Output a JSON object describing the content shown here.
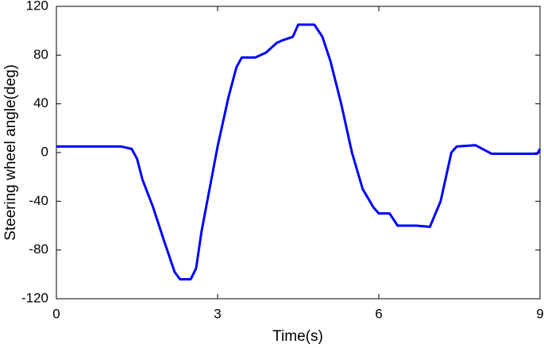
{
  "chart_data": {
    "type": "line",
    "x_label": "Time(s)",
    "y_label": "Steering wheel angle(deg)",
    "xlim": [
      0,
      9
    ],
    "xticks": [
      0,
      3,
      6,
      9
    ],
    "ylim": [
      -120,
      120
    ],
    "yticks": [
      -120,
      -80,
      -40,
      0,
      40,
      80,
      120
    ],
    "series": [
      {
        "name": "Steering wheel angle",
        "color": "#0000ff",
        "x": [
          0,
          0.5,
          1.0,
          1.2,
          1.4,
          1.5,
          1.6,
          1.8,
          2.0,
          2.2,
          2.3,
          2.5,
          2.6,
          2.7,
          2.85,
          3.0,
          3.2,
          3.35,
          3.45,
          3.7,
          3.9,
          4.1,
          4.2,
          4.4,
          4.5,
          4.8,
          4.95,
          5.1,
          5.3,
          5.5,
          5.7,
          5.9,
          6.0,
          6.2,
          6.35,
          6.7,
          6.95,
          7.15,
          7.35,
          7.45,
          7.8,
          8.1,
          8.5,
          8.95,
          9.0
        ],
        "values": [
          5,
          5,
          5,
          5,
          3,
          -5,
          -22,
          -45,
          -72,
          -98,
          -104,
          -104,
          -95,
          -65,
          -30,
          5,
          45,
          70,
          78,
          78,
          82,
          90,
          92,
          95,
          105,
          105,
          95,
          75,
          40,
          0,
          -30,
          -45,
          -50,
          -50,
          -60,
          -60,
          -61,
          -40,
          0,
          5,
          6,
          -1,
          -1,
          -1,
          3
        ]
      }
    ]
  }
}
